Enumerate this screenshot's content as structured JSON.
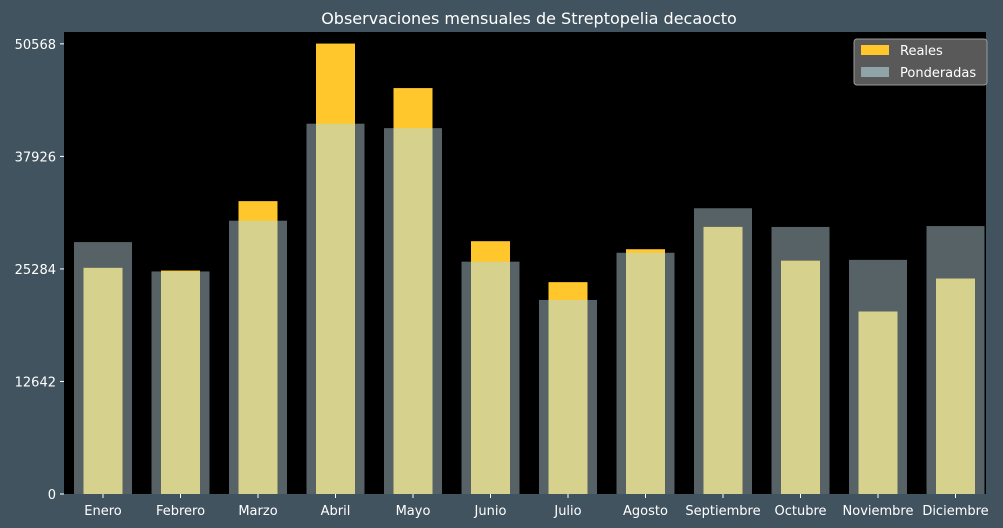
{
  "chart_data": {
    "type": "bar",
    "title": "Observaciones mensuales de Streptopelia decaocto",
    "xlabel": "",
    "ylabel": "",
    "categories": [
      "Enero",
      "Febrero",
      "Marzo",
      "Abril",
      "Mayo",
      "Junio",
      "Julio",
      "Agosto",
      "Septiembre",
      "Octubre",
      "Noviembre",
      "Diciembre"
    ],
    "series": [
      {
        "name": "Reales",
        "color": "#ffc72c",
        "values": [
          25400,
          25100,
          32900,
          50600,
          45600,
          28400,
          23800,
          27500,
          30000,
          26200,
          20500,
          24200
        ]
      },
      {
        "name": "Ponderadas",
        "color": "#8fa4a8",
        "values": [
          28300,
          25000,
          30700,
          41600,
          41100,
          26100,
          21800,
          27100,
          32100,
          30000,
          26300,
          30100
        ]
      }
    ],
    "yticks": [
      "0",
      "12642",
      "25284",
      "37926",
      "50568"
    ],
    "ylim": [
      0,
      51900
    ],
    "grid": false,
    "legend_position": "top-right",
    "plot_background": "#000000",
    "figure_background": "#41535f"
  }
}
